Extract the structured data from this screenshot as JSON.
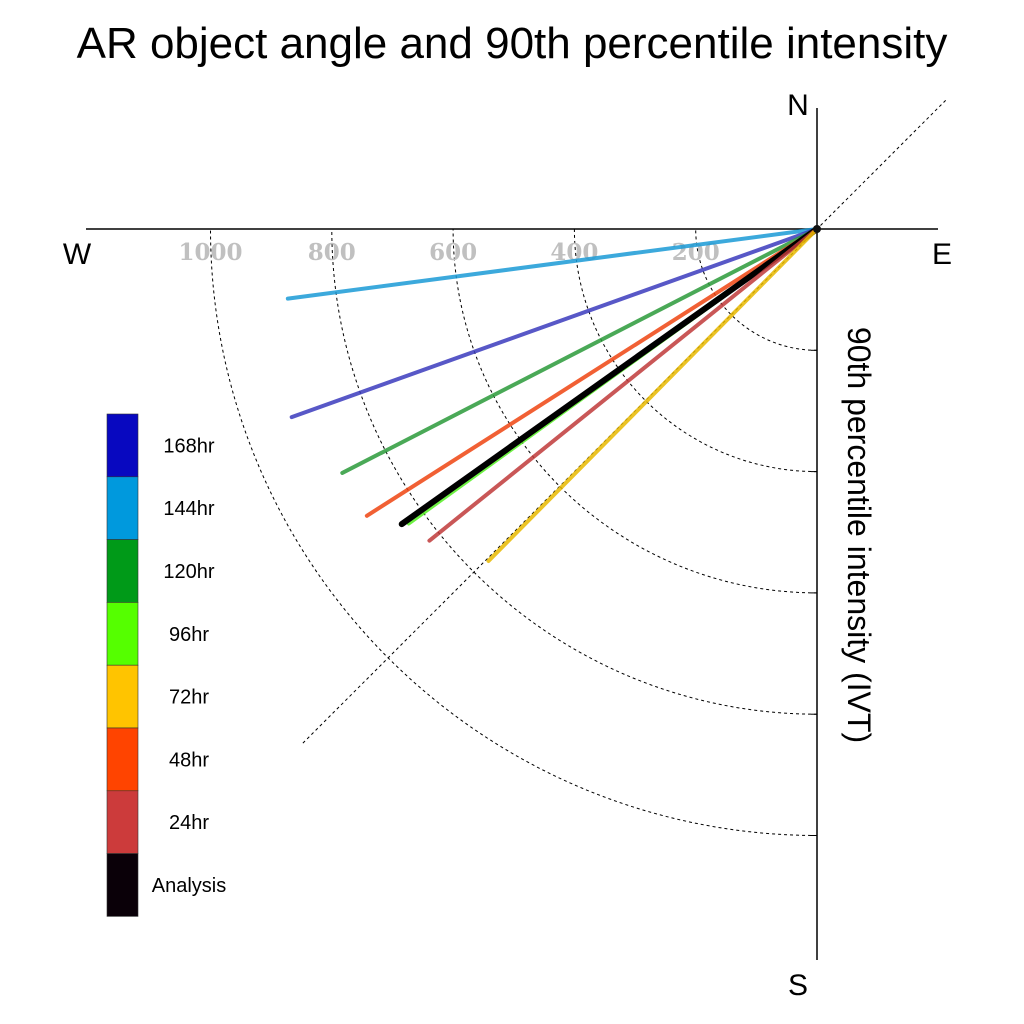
{
  "chart_data": {
    "type": "polar-line",
    "title": "AR object angle and 90th percentile intensity",
    "ylabel": "90th percentile intensity (IVT)",
    "compass": {
      "north": "N",
      "south": "S",
      "east": "E",
      "west": "W"
    },
    "radial_ticks": [
      200,
      400,
      600,
      800,
      1000
    ],
    "radial_tick_labels": [
      "200",
      "400",
      "600",
      "800",
      "1000"
    ],
    "radial_range": [
      0,
      1200
    ],
    "quadrant": "south-west",
    "grid": true,
    "legend_position": "left",
    "series": [
      {
        "name": "144hr",
        "color": "#1a9ad6",
        "bearing": 262.5,
        "intensity": 880
      },
      {
        "name": "168hr",
        "color": "#3b3bbd",
        "bearing": 250.3,
        "intensity": 920
      },
      {
        "name": "120hr",
        "color": "#2a9a3a",
        "bearing": 242.8,
        "intensity": 880
      },
      {
        "name": "48hr",
        "color": "#ee4411",
        "bearing": 237.5,
        "intensity": 880
      },
      {
        "name": "96hr",
        "color": "#55ee22",
        "bearing": 234.2,
        "intensity": 830
      },
      {
        "name": "Analysis",
        "color": "#000000",
        "bearing": 234.6,
        "intensity": 840
      },
      {
        "name": "24hr",
        "color": "#c03a3a",
        "bearing": 231.2,
        "intensity": 820
      },
      {
        "name": "72hr",
        "color": "#e8b800",
        "bearing": 224.7,
        "intensity": 770
      }
    ],
    "legend": [
      {
        "label": "168hr",
        "color": "#0808c0"
      },
      {
        "label": "144hr",
        "color": "#0099dd"
      },
      {
        "label": "120hr",
        "color": "#009a18"
      },
      {
        "label": "96hr",
        "color": "#55ff00"
      },
      {
        "label": "72hr",
        "color": "#ffc400"
      },
      {
        "label": "48hr",
        "color": "#ff4400"
      },
      {
        "label": "24hr",
        "color": "#cc3b3b"
      },
      {
        "label": "Analysis",
        "color": "#0a0008"
      }
    ]
  }
}
